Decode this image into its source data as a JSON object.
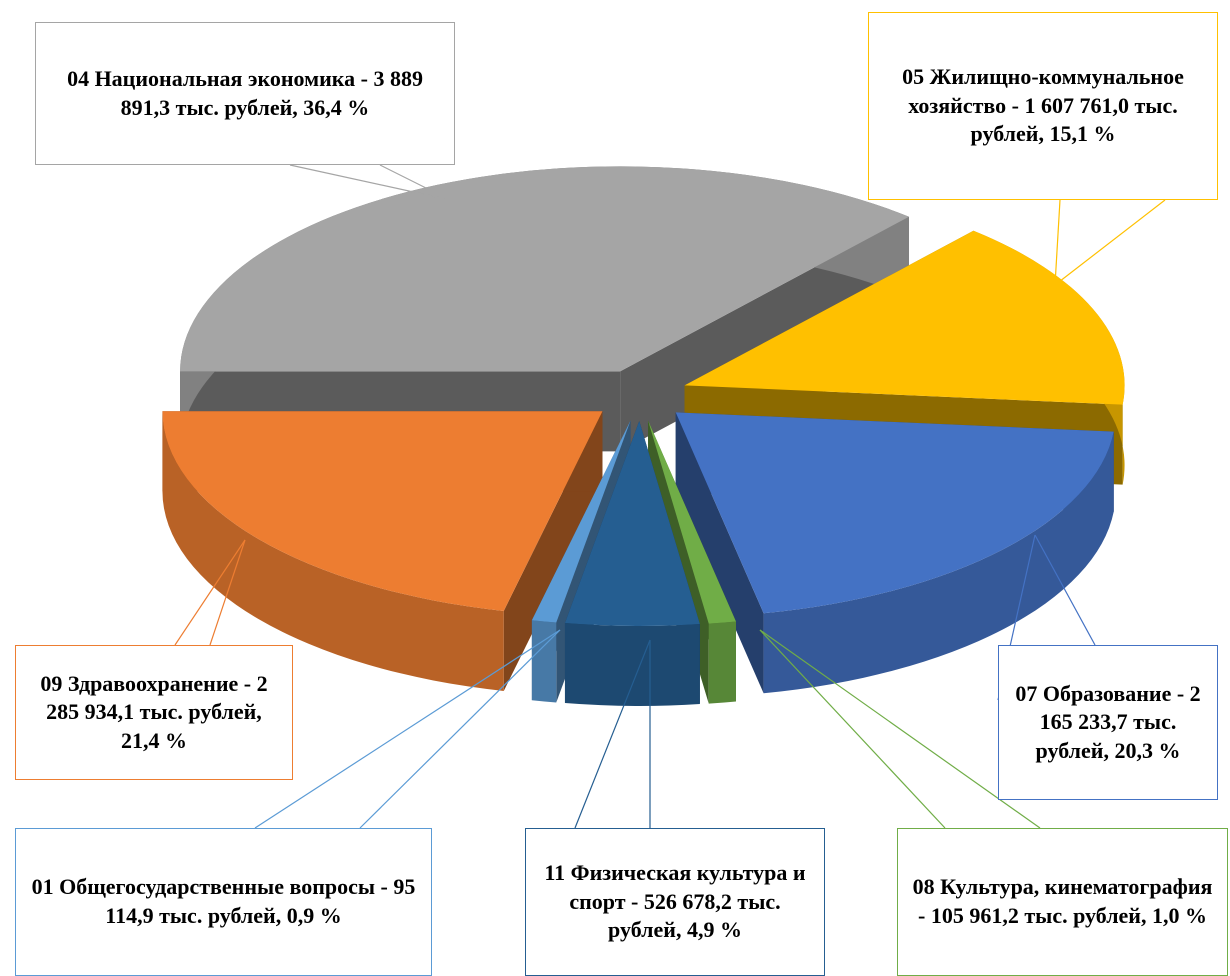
{
  "chart_data": {
    "type": "pie3d",
    "categories": [
      "04 Национальная экономика -",
      "05 Жилищно-коммунальное хозяйство -",
      "07 Образование -",
      "08 Культура, кинематография -",
      "11 Физическая культура и спорт -",
      "01 Общегосударственные вопросы -",
      "09 Здравоохранение -"
    ],
    "values": [
      36.4,
      15.1,
      20.3,
      1.0,
      4.9,
      0.9,
      21.4
    ],
    "value_labels": [
      "3 889 891,3 тыс. рублей, 36,4 %",
      "1 607 761,0 тыс. рублей, 15,1 %",
      "2 165 233,7 тыс. рублей, 20,3 %",
      "105 961,2 тыс. рублей, 1,0 %",
      "526 678,2 тыс. рублей, 4,9 %",
      "95 114,9 тыс. рублей, 0,9 %",
      "2 285 934,1 тыс. рублей, 21,4 %"
    ],
    "colors": [
      "#a5a5a5",
      "#ffc000",
      "#4472c4",
      "#70ad47",
      "#255e91",
      "#5b9bd5",
      "#ed7d31"
    ]
  }
}
